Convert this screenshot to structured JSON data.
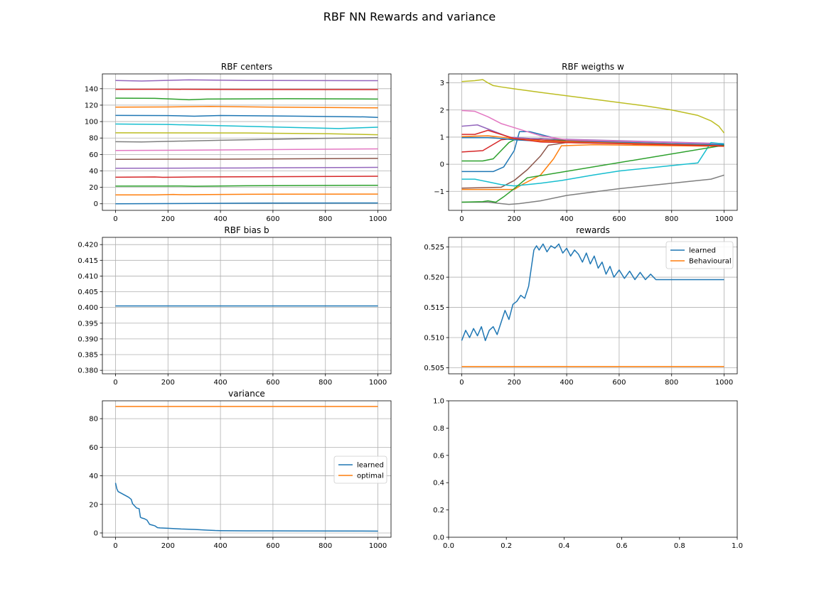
{
  "figure": {
    "suptitle": "RBF NN Rewards and variance"
  },
  "colors": {
    "C0": "#1f77b4",
    "C1": "#ff7f0e",
    "C2": "#2ca02c",
    "C3": "#d62728",
    "C4": "#9467bd",
    "C5": "#8c564b",
    "C6": "#e377c2",
    "C7": "#7f7f7f",
    "C8": "#bcbd22",
    "C9": "#17becf"
  },
  "chart_data": [
    {
      "id": "centers",
      "type": "line",
      "title": "RBF centers",
      "xlim": [
        -50,
        1050
      ],
      "ylim": [
        -8,
        158
      ],
      "xticks": [
        0,
        200,
        400,
        600,
        800,
        1000
      ],
      "yticks": [
        0,
        20,
        40,
        60,
        80,
        100,
        120,
        140
      ],
      "xticklabels": [
        "0",
        "200",
        "400",
        "600",
        "800",
        "1000"
      ],
      "yticklabels": [
        "0",
        "20",
        "40",
        "60",
        "80",
        "100",
        "120",
        "140"
      ],
      "grid": true,
      "series": [
        {
          "name": "center 1",
          "color": "C0",
          "x": [
            0,
            250,
            500,
            1000
          ],
          "y": [
            0,
            0.3,
            0.8,
            1
          ]
        },
        {
          "name": "center 2",
          "color": "C1",
          "x": [
            0,
            150,
            220,
            260,
            500,
            1000
          ],
          "y": [
            10.8,
            10.8,
            11.3,
            11.0,
            11.6,
            11.8
          ]
        },
        {
          "name": "center 3",
          "color": "C2",
          "x": [
            0,
            250,
            300,
            500,
            1000
          ],
          "y": [
            21.5,
            21.6,
            21.3,
            21.9,
            22.5
          ]
        },
        {
          "name": "center 4",
          "color": "C3",
          "x": [
            0,
            150,
            180,
            300,
            1000
          ],
          "y": [
            32.3,
            32.6,
            32.2,
            32.6,
            33.5
          ]
        },
        {
          "name": "center 5",
          "color": "C4",
          "x": [
            0,
            300,
            500,
            1000
          ],
          "y": [
            43.2,
            43.4,
            43.6,
            44.3
          ]
        },
        {
          "name": "center 6",
          "color": "C5",
          "x": [
            0,
            200,
            400,
            1000
          ],
          "y": [
            54.0,
            54.3,
            54.3,
            55.2
          ]
        },
        {
          "name": "center 7",
          "color": "C6",
          "x": [
            0,
            300,
            600,
            1000
          ],
          "y": [
            64.8,
            65.3,
            65.9,
            66.8
          ]
        },
        {
          "name": "center 8",
          "color": "C7",
          "x": [
            0,
            100,
            400,
            800,
            1000
          ],
          "y": [
            75.5,
            75.2,
            77.3,
            79.6,
            80.5
          ]
        },
        {
          "name": "center 9",
          "color": "C8",
          "x": [
            0,
            500,
            800,
            1000
          ],
          "y": [
            86.3,
            86.1,
            85.3,
            84.0
          ]
        },
        {
          "name": "center 10",
          "color": "C9",
          "x": [
            0,
            200,
            500,
            850,
            1000
          ],
          "y": [
            97.1,
            96.5,
            94.2,
            91.5,
            93.2
          ]
        },
        {
          "name": "center 11",
          "color": "C0",
          "x": [
            0,
            200,
            300,
            400,
            700,
            950,
            1000
          ],
          "y": [
            107.5,
            107.3,
            106.6,
            107.4,
            106.6,
            105.7,
            105.0
          ]
        },
        {
          "name": "center 12",
          "color": "C1",
          "x": [
            0,
            200,
            360,
            600,
            1000
          ],
          "y": [
            117.6,
            117.8,
            118.4,
            117.6,
            116.7
          ]
        },
        {
          "name": "center 13",
          "color": "C2",
          "x": [
            0,
            150,
            280,
            350,
            650,
            1000
          ],
          "y": [
            128.5,
            128.3,
            126.6,
            127.4,
            127.8,
            127.4
          ]
        },
        {
          "name": "center 14",
          "color": "C3",
          "x": [
            0,
            200,
            500,
            1000
          ],
          "y": [
            139.2,
            139.3,
            139.0,
            138.9
          ]
        },
        {
          "name": "center 15",
          "color": "C4",
          "x": [
            0,
            100,
            280,
            500,
            1000
          ],
          "y": [
            150.0,
            149.3,
            150.8,
            150.0,
            149.8
          ]
        }
      ]
    },
    {
      "id": "weights",
      "type": "line",
      "title": "RBF weigths w",
      "xlim": [
        -50,
        1050
      ],
      "ylim": [
        -1.7,
        3.33
      ],
      "xticks": [
        0,
        200,
        400,
        600,
        800,
        1000
      ],
      "yticks": [
        -1,
        0,
        1,
        2,
        3
      ],
      "xticklabels": [
        "0",
        "200",
        "400",
        "600",
        "800",
        "1000"
      ],
      "yticklabels": [
        "−1",
        "0",
        "1",
        "2",
        "3"
      ],
      "grid": true,
      "series": [
        {
          "name": "weight 1",
          "color": "C0",
          "x": [
            0,
            120,
            160,
            200,
            220,
            260,
            300,
            380,
            500,
            1000
          ],
          "y": [
            -0.27,
            -0.27,
            -0.1,
            0.5,
            1.2,
            1.2,
            1.1,
            0.9,
            0.85,
            0.7
          ]
        },
        {
          "name": "weight 2",
          "color": "C1",
          "x": [
            0,
            200,
            230,
            300,
            350,
            380,
            500,
            1000
          ],
          "y": [
            -0.93,
            -0.93,
            -0.75,
            -0.4,
            0.2,
            0.68,
            0.72,
            0.66
          ]
        },
        {
          "name": "weight 3",
          "color": "C2",
          "x": [
            0,
            80,
            120,
            150,
            180,
            200,
            250,
            300,
            330,
            500,
            1000
          ],
          "y": [
            0.12,
            0.12,
            0.2,
            0.5,
            0.8,
            0.9,
            0.9,
            0.95,
            0.93,
            0.8,
            0.7
          ]
        },
        {
          "name": "weight 4",
          "color": "C3",
          "x": [
            0,
            80,
            150,
            200,
            250,
            400,
            1000
          ],
          "y": [
            0.45,
            0.5,
            0.9,
            0.95,
            0.92,
            0.85,
            0.68
          ]
        },
        {
          "name": "weight 5",
          "color": "C4",
          "x": [
            0,
            60,
            100,
            140,
            180,
            260,
            400,
            1000
          ],
          "y": [
            1.4,
            1.45,
            1.3,
            1.15,
            1.0,
            0.95,
            0.92,
            0.76
          ]
        },
        {
          "name": "weight 6",
          "color": "C5",
          "x": [
            0,
            150,
            200,
            250,
            300,
            330,
            400,
            1000
          ],
          "y": [
            -0.88,
            -0.85,
            -0.6,
            -0.2,
            0.3,
            0.7,
            0.8,
            0.7
          ]
        },
        {
          "name": "weight 7",
          "color": "C6",
          "x": [
            0,
            50,
            100,
            150,
            200,
            250,
            300,
            400,
            1000
          ],
          "y": [
            1.98,
            1.95,
            1.75,
            1.5,
            1.35,
            1.2,
            1.05,
            0.9,
            0.75
          ]
        },
        {
          "name": "weight 8",
          "color": "C7",
          "x": [
            0,
            100,
            150,
            180,
            220,
            300,
            400,
            600,
            800,
            950,
            1000
          ],
          "y": [
            -1.4,
            -1.4,
            -1.45,
            -1.48,
            -1.45,
            -1.35,
            -1.15,
            -0.9,
            -0.7,
            -0.55,
            -0.4
          ]
        },
        {
          "name": "weight 9",
          "color": "C8",
          "x": [
            0,
            50,
            80,
            100,
            120,
            150,
            200,
            300,
            500,
            700,
            800,
            900,
            950,
            980,
            1000
          ],
          "y": [
            3.05,
            3.08,
            3.12,
            3.0,
            2.9,
            2.85,
            2.78,
            2.65,
            2.4,
            2.15,
            2.0,
            1.8,
            1.6,
            1.4,
            1.15
          ]
        },
        {
          "name": "weight 10",
          "color": "C9",
          "x": [
            0,
            50,
            100,
            150,
            200,
            300,
            380,
            500,
            600,
            700,
            800,
            900,
            950,
            1000
          ],
          "y": [
            -0.55,
            -0.55,
            -0.65,
            -0.75,
            -0.8,
            -0.7,
            -0.6,
            -0.4,
            -0.25,
            -0.15,
            -0.05,
            0.05,
            0.8,
            0.75
          ]
        },
        {
          "name": "weight 11",
          "color": "C0",
          "x": [
            0,
            100,
            150,
            200,
            300,
            1000
          ],
          "y": [
            0.98,
            0.98,
            0.95,
            0.9,
            0.85,
            0.72
          ]
        },
        {
          "name": "weight 12",
          "color": "C1",
          "x": [
            0,
            100,
            150,
            200,
            300,
            1000
          ],
          "y": [
            1.02,
            1.05,
            1.0,
            0.95,
            0.85,
            0.68
          ]
        },
        {
          "name": "weight 13",
          "color": "C2",
          "x": [
            0,
            80,
            100,
            130,
            160,
            200,
            250,
            1000
          ],
          "y": [
            -1.4,
            -1.38,
            -1.35,
            -1.4,
            -1.2,
            -0.9,
            -0.5,
            0.7
          ]
        },
        {
          "name": "weight 14",
          "color": "C3",
          "x": [
            0,
            50,
            100,
            150,
            200,
            300,
            1000
          ],
          "y": [
            1.1,
            1.1,
            1.25,
            1.1,
            0.95,
            0.82,
            0.67
          ]
        }
      ]
    },
    {
      "id": "bias",
      "type": "line",
      "title": "RBF bias b",
      "xlim": [
        -50,
        1050
      ],
      "ylim": [
        0.3789,
        0.4223
      ],
      "xticks": [
        0,
        200,
        400,
        600,
        800,
        1000
      ],
      "yticks": [
        0.38,
        0.385,
        0.39,
        0.395,
        0.4,
        0.405,
        0.41,
        0.415,
        0.42
      ],
      "xticklabels": [
        "0",
        "200",
        "400",
        "600",
        "800",
        "1000"
      ],
      "yticklabels": [
        "0.380",
        "0.385",
        "0.390",
        "0.395",
        "0.400",
        "0.405",
        "0.410",
        "0.415",
        "0.420"
      ],
      "grid": true,
      "series": [
        {
          "name": "bias",
          "color": "C0",
          "x": [
            0,
            1000
          ],
          "y": [
            0.4005,
            0.4005
          ]
        }
      ]
    },
    {
      "id": "rewards",
      "type": "line",
      "title": "rewards",
      "xlim": [
        -50,
        1050
      ],
      "ylim": [
        0.504,
        0.5266
      ],
      "xticks": [
        0,
        200,
        400,
        600,
        800,
        1000
      ],
      "yticks": [
        0.505,
        0.51,
        0.515,
        0.52,
        0.525
      ],
      "xticklabels": [
        "0",
        "200",
        "400",
        "600",
        "800",
        "1000"
      ],
      "yticklabels": [
        "0.505",
        "0.510",
        "0.515",
        "0.520",
        "0.525"
      ],
      "grid": true,
      "legend": {
        "position": "upper-right",
        "entries": [
          "learned",
          "Behavioural"
        ]
      },
      "series": [
        {
          "name": "learned",
          "color": "C0",
          "x": [
            0,
            15,
            30,
            45,
            60,
            75,
            90,
            105,
            120,
            135,
            150,
            165,
            180,
            195,
            210,
            225,
            240,
            255,
            265,
            275,
            285,
            295,
            310,
            325,
            340,
            355,
            370,
            385,
            400,
            415,
            430,
            445,
            460,
            475,
            490,
            505,
            520,
            535,
            550,
            565,
            580,
            600,
            620,
            640,
            660,
            680,
            700,
            720,
            740,
            760,
            1000
          ],
          "y": [
            0.5095,
            0.5112,
            0.51,
            0.5115,
            0.5103,
            0.5118,
            0.5095,
            0.5112,
            0.5118,
            0.5105,
            0.5125,
            0.5145,
            0.513,
            0.5155,
            0.516,
            0.517,
            0.5165,
            0.5185,
            0.5215,
            0.5245,
            0.5252,
            0.5245,
            0.5255,
            0.5242,
            0.5252,
            0.5248,
            0.5255,
            0.524,
            0.5248,
            0.5235,
            0.5245,
            0.5238,
            0.5225,
            0.524,
            0.5222,
            0.5235,
            0.5215,
            0.5225,
            0.5205,
            0.5218,
            0.52,
            0.5212,
            0.5198,
            0.521,
            0.5196,
            0.5208,
            0.5196,
            0.5205,
            0.5196,
            0.5196,
            0.5196
          ]
        },
        {
          "name": "Behavioural",
          "color": "C1",
          "x": [
            0,
            1000
          ],
          "y": [
            0.5052,
            0.5052
          ]
        }
      ]
    },
    {
      "id": "variance",
      "type": "line",
      "title": "variance",
      "xlim": [
        -50,
        1050
      ],
      "ylim": [
        -3,
        92.5
      ],
      "xticks": [
        0,
        200,
        400,
        600,
        800,
        1000
      ],
      "yticks": [
        0,
        20,
        40,
        60,
        80
      ],
      "xticklabels": [
        "0",
        "200",
        "400",
        "600",
        "800",
        "1000"
      ],
      "yticklabels": [
        "0",
        "20",
        "40",
        "60",
        "80"
      ],
      "grid": true,
      "legend": {
        "position": "center-right",
        "entries": [
          "learned",
          "optimal"
        ]
      },
      "series": [
        {
          "name": "learned",
          "color": "C0",
          "x": [
            0,
            5,
            10,
            20,
            30,
            40,
            50,
            60,
            65,
            70,
            80,
            90,
            95,
            100,
            110,
            120,
            130,
            140,
            150,
            160,
            170,
            200,
            250,
            300,
            350,
            380,
            400,
            500,
            700,
            1000
          ],
          "y": [
            35,
            31,
            29,
            28,
            27,
            26,
            25,
            23.5,
            20.5,
            19.5,
            17.5,
            17,
            11,
            10.5,
            10,
            9,
            6,
            5.5,
            5,
            3.7,
            3.5,
            3.3,
            2.8,
            2.5,
            2.0,
            1.7,
            1.6,
            1.5,
            1.4,
            1.3
          ]
        },
        {
          "name": "optimal",
          "color": "C1",
          "x": [
            0,
            1000
          ],
          "y": [
            88.5,
            88.5
          ]
        }
      ]
    },
    {
      "id": "empty",
      "type": "line",
      "title": "",
      "xlim": [
        0,
        1
      ],
      "ylim": [
        0,
        1
      ],
      "xticks": [
        0,
        0.2,
        0.4,
        0.6,
        0.8,
        1.0
      ],
      "yticks": [
        0,
        0.2,
        0.4,
        0.6,
        0.8,
        1.0
      ],
      "xticklabels": [
        "0.0",
        "0.2",
        "0.4",
        "0.6",
        "0.8",
        "1.0"
      ],
      "yticklabels": [
        "0.0",
        "0.2",
        "0.4",
        "0.6",
        "0.8",
        "1.0"
      ],
      "grid": false,
      "series": []
    }
  ]
}
